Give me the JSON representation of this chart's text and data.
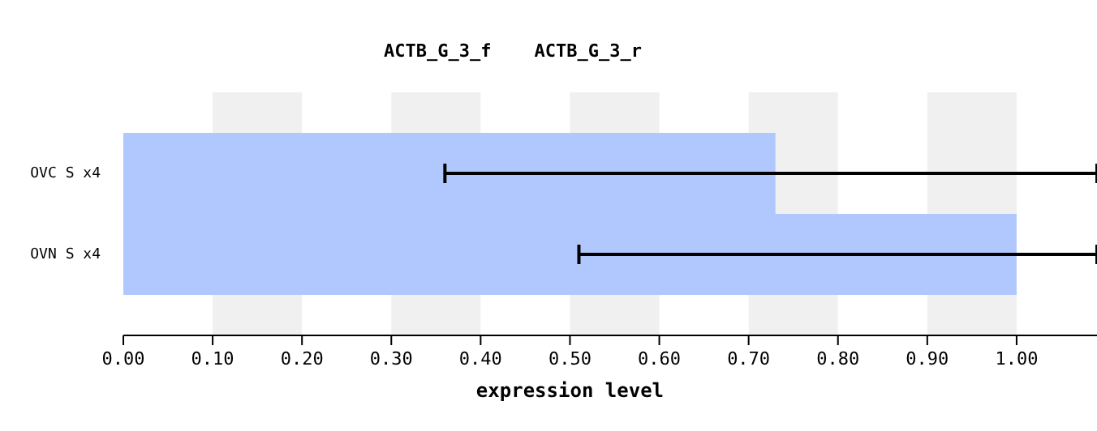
{
  "chart_data": {
    "type": "bar",
    "orientation": "horizontal",
    "title": "ACTB_G_3_f    ACTB_G_3_r",
    "xlabel": "expression level",
    "categories": [
      "OVC S x4",
      "OVN S x4"
    ],
    "values": [
      0.73,
      1.0
    ],
    "color": "#b0c8fd",
    "errors": [
      [
        0.36,
        1.09
      ],
      [
        0.51,
        1.09
      ]
    ],
    "xlim": [
      0,
      1.09
    ],
    "xticks": [
      {
        "value": 0,
        "label": "0.00"
      },
      {
        "value": 0.1,
        "label": "0.10"
      },
      {
        "value": 0.2,
        "label": "0.20"
      },
      {
        "value": 0.3,
        "label": "0.30"
      },
      {
        "value": 0.4,
        "label": "0.40"
      },
      {
        "value": 0.5,
        "label": "0.50"
      },
      {
        "value": 0.6,
        "label": "0.60"
      },
      {
        "value": 0.7,
        "label": "0.70"
      },
      {
        "value": 0.8,
        "label": "0.80"
      },
      {
        "value": 0.9,
        "label": "0.90"
      },
      {
        "value": 1.0,
        "label": "1.00"
      }
    ],
    "bands": [
      {
        "axis": "x",
        "from": 0.1,
        "to": 0.2,
        "color": "#f0f0f0"
      },
      {
        "axis": "x",
        "from": 0.3,
        "to": 0.4,
        "color": "#f0f0f0"
      },
      {
        "axis": "x",
        "from": 0.5,
        "to": 0.6,
        "color": "#f0f0f0"
      },
      {
        "axis": "x",
        "from": 0.7,
        "to": 0.8,
        "color": "#f0f0f0"
      },
      {
        "axis": "x",
        "from": 0.9,
        "to": 1.0,
        "color": "#f0f0f0"
      }
    ]
  }
}
